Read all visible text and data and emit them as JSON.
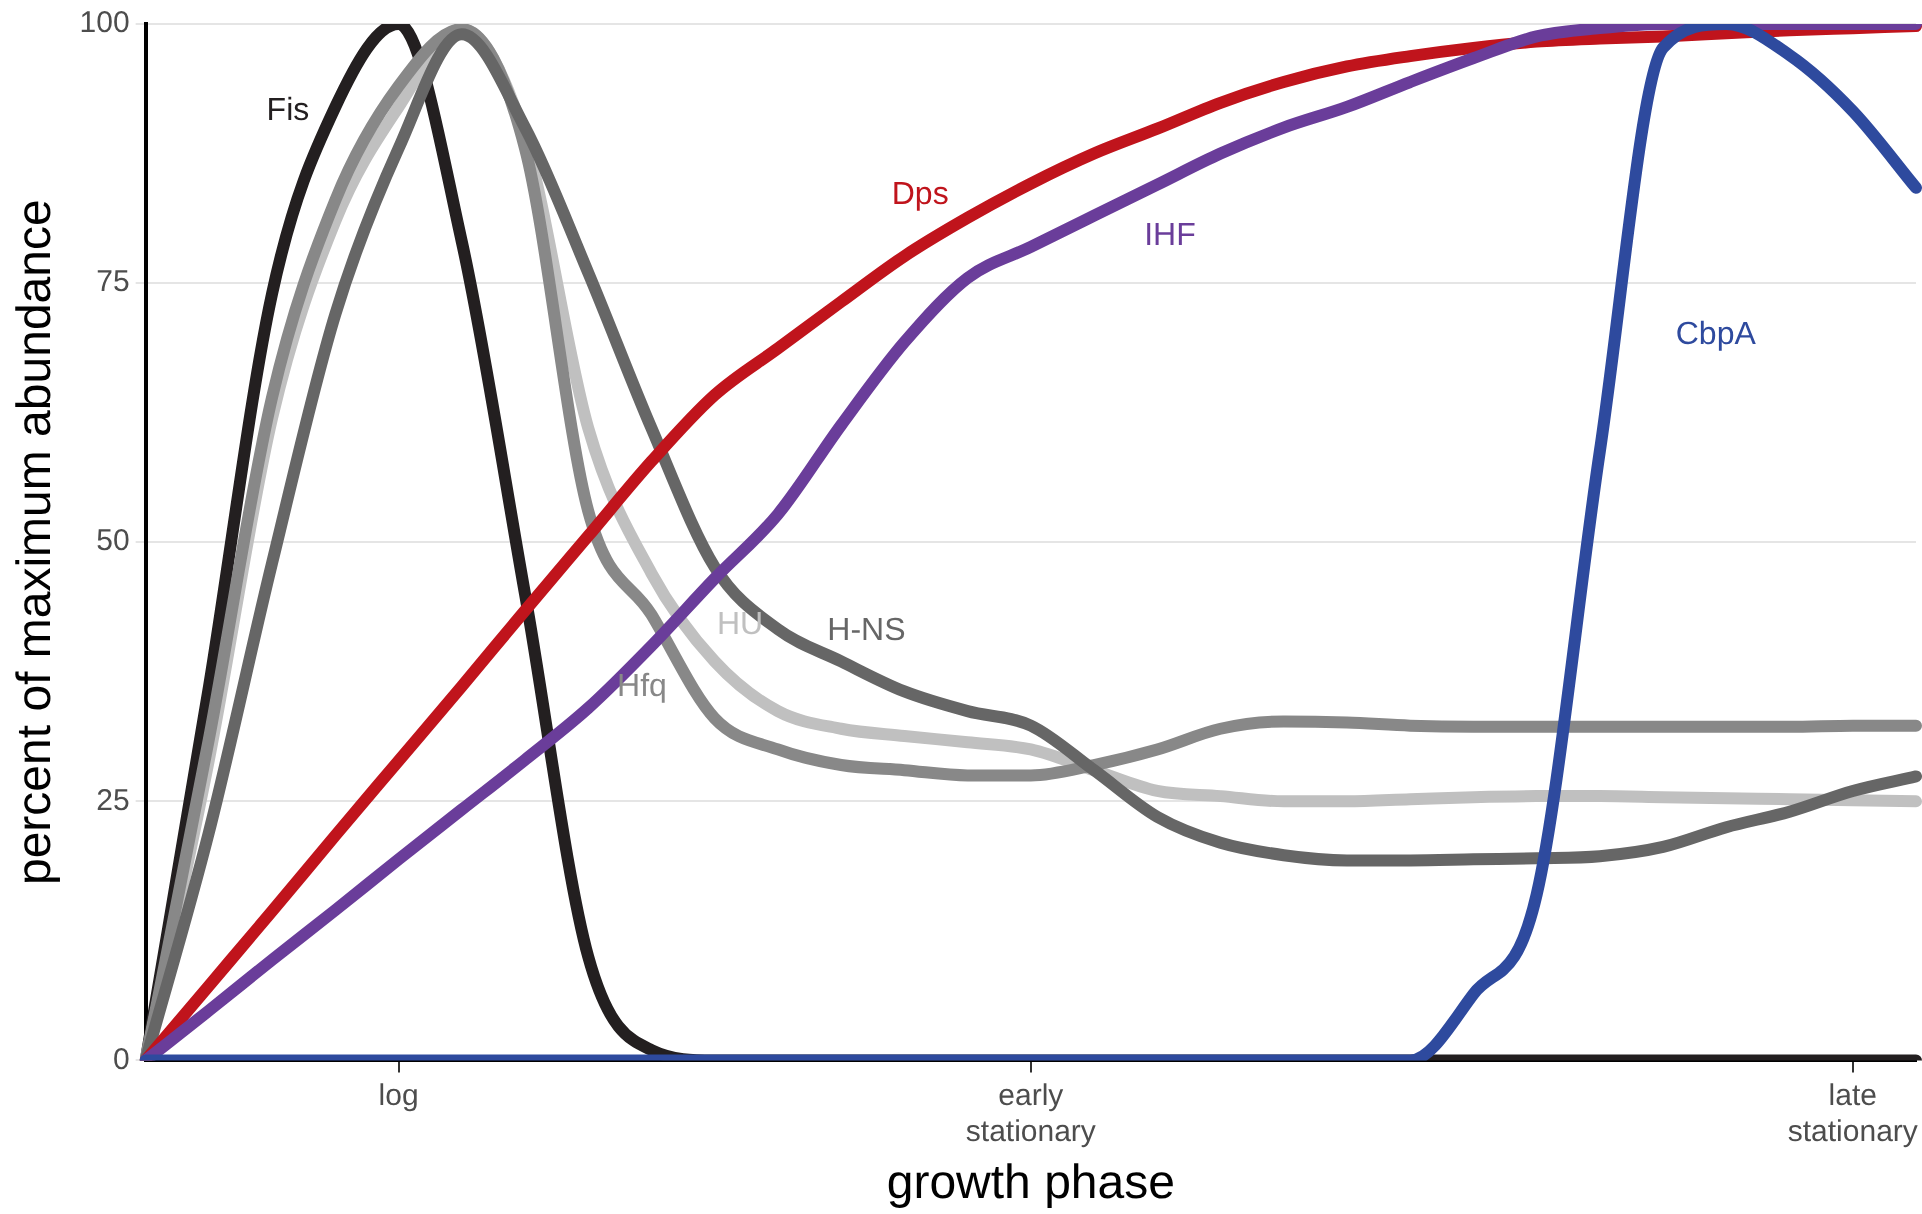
{
  "chart_data": {
    "type": "line",
    "xlabel": "growth phase",
    "ylabel": "percent of maximum abundance",
    "categories": [
      null,
      null,
      null,
      null,
      "log",
      null,
      null,
      null,
      null,
      null,
      null,
      null,
      null,
      null,
      "early stationary",
      null,
      null,
      null,
      null,
      null,
      null,
      null,
      null,
      null,
      null,
      null,
      null,
      "late stationary",
      null
    ],
    "ylim": [
      0,
      100
    ],
    "yticks": [
      0,
      25,
      50,
      75,
      100
    ],
    "grid": "y",
    "legend": false,
    "marker": "none",
    "line_style": "solid",
    "series": [
      {
        "name": "CbpA",
        "color": "#2e4a9e",
        "values": [
          0,
          0,
          0,
          0,
          0,
          0,
          0,
          0,
          0,
          0,
          0,
          0,
          0,
          0,
          0,
          0,
          0,
          0,
          0,
          0,
          0,
          6.4,
          16,
          58.8,
          97.7,
          100,
          97,
          91.6,
          84.2
        ]
      },
      {
        "name": "IHF",
        "color": "#6a3d9a",
        "values": [
          0,
          4.8,
          9.7,
          14.5,
          19.4,
          24.2,
          29,
          34,
          40,
          46.5,
          52.7,
          61.3,
          69.3,
          75.5,
          78.5,
          81.5,
          84.5,
          87.5,
          90,
          92,
          94.4,
          96.7,
          98.8,
          99.6,
          100,
          100,
          100,
          100,
          100
        ]
      },
      {
        "name": "Dps",
        "color": "#c0141c",
        "values": [
          0,
          7.2,
          14.4,
          21.7,
          28.9,
          36.1,
          43.4,
          50.6,
          57.8,
          64.2,
          68.7,
          73.2,
          77.6,
          81.3,
          84.6,
          87.5,
          89.9,
          92.4,
          94.4,
          95.9,
          96.9,
          97.7,
          98.3,
          98.6,
          98.8,
          99.1,
          99.4,
          99.6,
          99.8
        ]
      },
      {
        "name": "H-NS",
        "color": "#666666",
        "values": [
          0,
          22,
          48,
          72,
          88,
          99,
          90,
          76,
          61,
          47.6,
          41.6,
          38.5,
          35.6,
          33.7,
          32.3,
          28,
          23.5,
          21,
          19.8,
          19.3,
          19.3,
          19.4,
          19.5,
          19.7,
          20.6,
          22.5,
          24,
          26,
          27.4
        ]
      },
      {
        "name": "Hfq",
        "color": "#888888",
        "values": [
          0,
          31,
          64,
          83,
          94,
          99.5,
          88,
          53,
          43,
          33,
          30,
          28.5,
          28,
          27.5,
          27.5,
          28.5,
          30,
          32,
          32.7,
          32.6,
          32.3,
          32.2,
          32.2,
          32.2,
          32.2,
          32.2,
          32.2,
          32.3,
          32.3
        ]
      },
      {
        "name": "HU",
        "color": "#c0c0c0",
        "values": [
          0,
          29,
          62,
          81,
          92,
          99.5,
          89,
          61,
          47,
          38.5,
          33.7,
          32,
          31.3,
          30.7,
          30,
          28,
          26,
          25.5,
          25,
          25,
          25.2,
          25.4,
          25.5,
          25.5,
          25.4,
          25.3,
          25.2,
          25.1,
          25
        ]
      },
      {
        "name": "Fis",
        "color": "#231f20",
        "values": [
          0,
          36,
          74,
          92,
          100,
          79,
          45,
          10,
          1,
          0,
          0,
          0,
          0,
          0,
          0,
          0,
          0,
          0,
          0,
          0,
          0,
          0,
          0,
          0,
          0,
          0,
          0,
          0,
          0
        ]
      }
    ]
  }
}
